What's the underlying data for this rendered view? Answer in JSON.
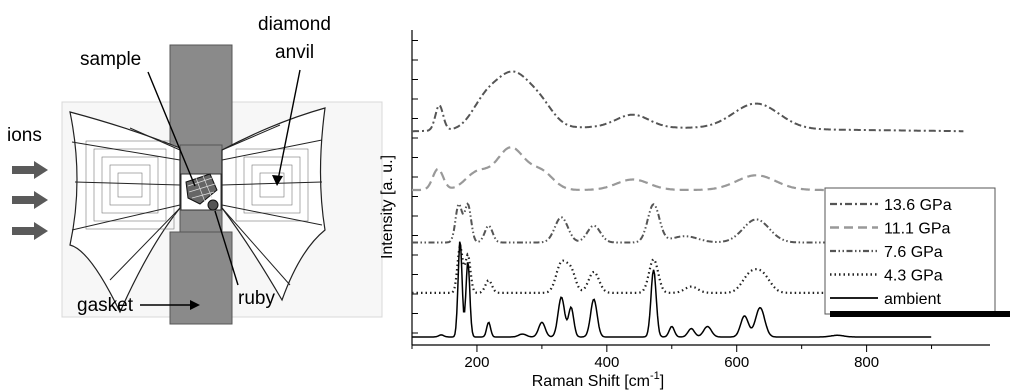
{
  "diagram": {
    "labels": {
      "ions": "ions",
      "sample": "sample",
      "diamond": "diamond",
      "anvil": "anvil",
      "gasket": "gasket",
      "ruby": "ruby"
    },
    "colors": {
      "gasket": "#8a8a8a",
      "hatch": "#444444",
      "arrow": "#5a5a5a"
    }
  },
  "chart_data": {
    "type": "line",
    "xlabel": "Raman Shift [cm",
    "xlabel_sup": "-1",
    "xlabel_end": "]",
    "ylabel": "Intensity [a. u.]",
    "xlim": [
      100,
      990
    ],
    "xticks": [
      200,
      400,
      600,
      800
    ],
    "legend_position": "right",
    "series": [
      {
        "name": "13.6 GPa",
        "style": "dash-dot",
        "color": "#555555",
        "offset": 4.85,
        "peaks": [
          [
            142,
            0.6,
            6
          ],
          [
            210,
            0.5,
            20
          ],
          [
            255,
            1.3,
            28
          ],
          [
            300,
            0.4,
            20
          ],
          [
            440,
            0.3,
            25
          ],
          [
            630,
            0.6,
            35
          ]
        ],
        "baseline": [
          [
            100,
            0.05
          ],
          [
            400,
            0.15
          ],
          [
            950,
            0.05
          ]
        ]
      },
      {
        "name": "11.1 GPa",
        "style": "dashed",
        "color": "#999999",
        "offset": 3.5,
        "peaks": [
          [
            140,
            0.5,
            8
          ],
          [
            200,
            0.4,
            18
          ],
          [
            252,
            1.0,
            22
          ],
          [
            300,
            0.4,
            18
          ],
          [
            440,
            0.25,
            25
          ],
          [
            630,
            0.35,
            30
          ]
        ],
        "baseline": [
          [
            100,
            0.0
          ],
          [
            950,
            0.0
          ]
        ]
      },
      {
        "name": "7.6 GPa",
        "style": "dash-dot-dot",
        "color": "#555555",
        "offset": 2.25,
        "peaks": [
          [
            172,
            0.9,
            5
          ],
          [
            186,
            0.9,
            5
          ],
          [
            218,
            0.4,
            6
          ],
          [
            330,
            0.6,
            10
          ],
          [
            380,
            0.4,
            10
          ],
          [
            472,
            0.9,
            9
          ],
          [
            520,
            0.15,
            20
          ],
          [
            630,
            0.55,
            20
          ]
        ],
        "baseline": [
          [
            100,
            0.0
          ],
          [
            950,
            0.0
          ]
        ]
      },
      {
        "name": "4.3 GPa",
        "style": "dotted",
        "color": "#222222",
        "offset": 1.05,
        "peaks": [
          [
            174,
            1.1,
            4
          ],
          [
            186,
            0.9,
            4
          ],
          [
            218,
            0.3,
            5
          ],
          [
            330,
            0.7,
            8
          ],
          [
            345,
            0.5,
            7
          ],
          [
            380,
            0.5,
            8
          ],
          [
            472,
            0.8,
            7
          ],
          [
            530,
            0.15,
            10
          ],
          [
            620,
            0.4,
            12
          ],
          [
            640,
            0.4,
            12
          ]
        ],
        "baseline": [
          [
            100,
            0.0
          ],
          [
            950,
            0.0
          ]
        ]
      },
      {
        "name": "ambient",
        "style": "solid",
        "color": "#000000",
        "offset": 0.0,
        "peaks": [
          [
            145,
            0.05,
            4
          ],
          [
            174,
            2.3,
            3
          ],
          [
            186,
            1.8,
            3
          ],
          [
            218,
            0.35,
            3
          ],
          [
            270,
            0.07,
            6
          ],
          [
            300,
            0.35,
            5
          ],
          [
            330,
            0.95,
            5
          ],
          [
            345,
            0.7,
            4
          ],
          [
            380,
            0.9,
            5
          ],
          [
            472,
            1.6,
            4
          ],
          [
            500,
            0.25,
            4
          ],
          [
            530,
            0.2,
            5
          ],
          [
            555,
            0.25,
            6
          ],
          [
            612,
            0.5,
            6
          ],
          [
            636,
            0.7,
            7
          ],
          [
            755,
            0.04,
            10
          ]
        ],
        "baseline": [
          [
            100,
            0.0
          ],
          [
            900,
            0.0
          ]
        ]
      }
    ]
  }
}
